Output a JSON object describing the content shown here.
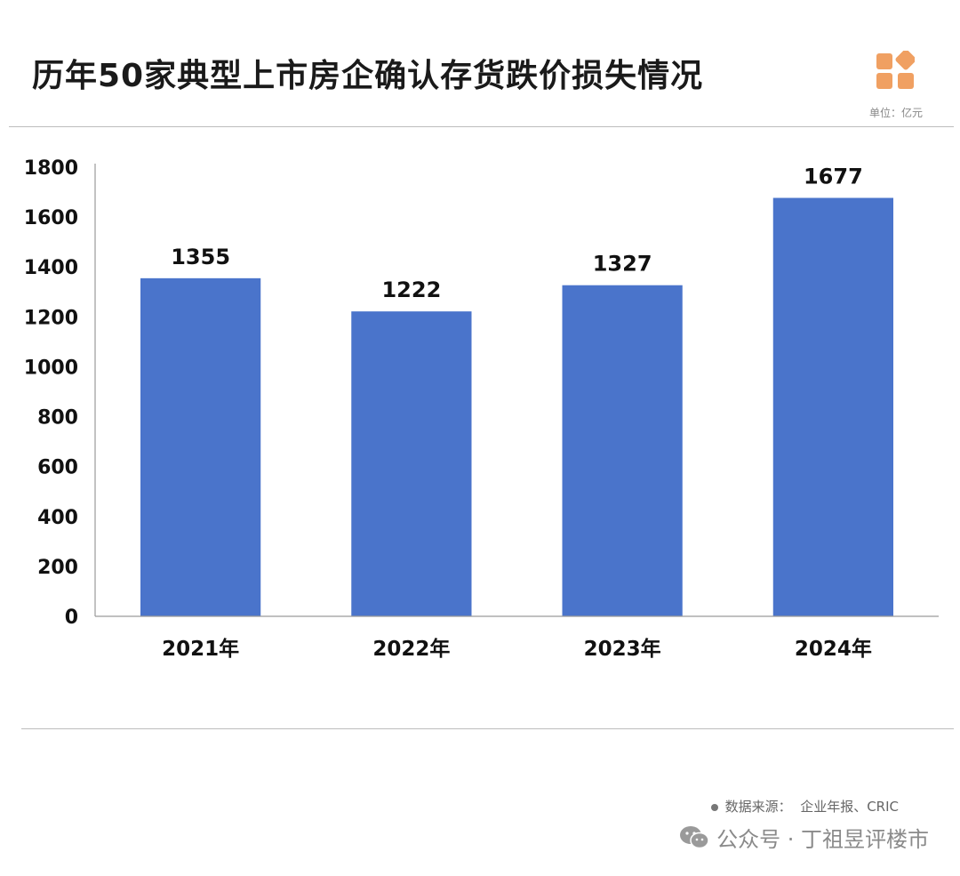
{
  "title": "历年50家典型上市房企确认存货跌价损失情况",
  "unit": "单位：亿元",
  "colors": {
    "bar": "#4A74CB",
    "logo": "#F0A062",
    "axis": "#9a9a9a",
    "rule": "#bdbdbd"
  },
  "chart_data": {
    "type": "bar",
    "title": "历年50家典型上市房企确认存货跌价损失情况",
    "xlabel": "",
    "ylabel": "",
    "categories": [
      "2021年",
      "2022年",
      "2023年",
      "2024年"
    ],
    "values": [
      1355,
      1222,
      1327,
      1677
    ],
    "data_labels": [
      "1355",
      "1222",
      "1327",
      "1677"
    ],
    "ylim": [
      0,
      1800
    ],
    "yticks": [
      0,
      200,
      400,
      600,
      800,
      1000,
      1200,
      1400,
      1600,
      1800
    ],
    "grid": false,
    "legend": "none"
  },
  "source": {
    "label": "数据来源：",
    "text": "企业年报、CRIC"
  },
  "footer": {
    "icon": "wechat-icon",
    "text": "公众号 · 丁祖昱评楼市"
  }
}
